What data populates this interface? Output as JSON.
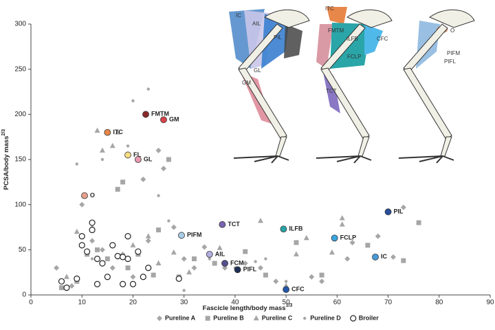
{
  "chart_data": {
    "type": "scatter",
    "x_label": {
      "text": "Fascicle length/body mass",
      "sup": "1/3"
    },
    "y_label": {
      "text": "PCSA/body mass",
      "sup": "2/3"
    },
    "xlim": [
      0,
      90
    ],
    "xticks": [
      0,
      10,
      20,
      30,
      40,
      50,
      60,
      70,
      80,
      90
    ],
    "ylim": [
      0,
      300
    ],
    "yticks": [
      0,
      50,
      100,
      150,
      200,
      250,
      300
    ],
    "series": [
      {
        "name": "Pureline A",
        "marker": "diamond",
        "color": "#a6a6a6",
        "x": [
          5,
          8,
          10,
          12,
          14,
          16,
          18,
          20,
          22,
          23,
          25,
          26,
          28,
          30,
          32,
          34,
          38,
          42,
          45,
          48,
          55,
          57,
          62,
          63,
          68,
          71,
          73
        ],
        "y": [
          30,
          10,
          100,
          60,
          50,
          30,
          45,
          20,
          128,
          60,
          160,
          140,
          75,
          40,
          30,
          53,
          30,
          35,
          30,
          15,
          20,
          15,
          40,
          58,
          65,
          42,
          97
        ]
      },
      {
        "name": "Pureline B",
        "marker": "square",
        "color": "#a6a6a6",
        "x": [
          6,
          9,
          11,
          13,
          15,
          17,
          18,
          19,
          21,
          24,
          25,
          27,
          29,
          32,
          36,
          42,
          46,
          52,
          57,
          66,
          73,
          76
        ],
        "y": [
          8,
          15,
          45,
          50,
          40,
          117,
          125,
          30,
          45,
          22,
          72,
          150,
          20,
          40,
          35,
          48,
          22,
          58,
          22,
          55,
          38,
          80
        ]
      },
      {
        "name": "Pureline C",
        "marker": "triangle",
        "color": "#a6a6a6",
        "x": [
          7,
          9,
          12,
          13,
          14,
          16,
          17,
          20,
          23,
          25,
          28,
          31,
          37,
          45,
          50,
          52,
          54,
          59,
          61,
          61
        ],
        "y": [
          20,
          70,
          75,
          182,
          160,
          165,
          180,
          55,
          65,
          35,
          47,
          25,
          52,
          82,
          10,
          45,
          63,
          47,
          85,
          78
        ]
      },
      {
        "name": "Pureline D",
        "marker": "dot",
        "color": "#a6a6a6",
        "x": [
          9,
          12,
          14,
          19,
          20,
          23,
          25,
          27,
          30,
          35,
          40,
          44,
          46,
          50
        ],
        "y": [
          145,
          40,
          150,
          165,
          215,
          228,
          110,
          82,
          5,
          40,
          30,
          37,
          40,
          15
        ]
      },
      {
        "name": "Broiler",
        "marker": "open-circle",
        "color": "#222222",
        "x": [
          6,
          7,
          9,
          10,
          10,
          11,
          12,
          12,
          13,
          13,
          14,
          15,
          16,
          17,
          18,
          18,
          19,
          19,
          20,
          21,
          22,
          23,
          29
        ],
        "y": [
          15,
          8,
          18,
          55,
          65,
          48,
          80,
          72,
          40,
          12,
          35,
          20,
          55,
          43,
          42,
          12,
          65,
          40,
          12,
          48,
          20,
          30,
          18
        ]
      }
    ],
    "highlighted": [
      {
        "label": "ITC",
        "x": 15,
        "y": 180,
        "color": "#e8874a"
      },
      {
        "label": "FMTM",
        "x": 22.5,
        "y": 200,
        "color": "#8b2a2a"
      },
      {
        "label": "GM",
        "x": 26,
        "y": 194,
        "color": "#d9434b"
      },
      {
        "label": "FL",
        "x": 19,
        "y": 155,
        "color": "#f5dc84"
      },
      {
        "label": "GL",
        "x": 21,
        "y": 150,
        "color": "#e89ab0"
      },
      {
        "label": "O",
        "x": 10.5,
        "y": 110,
        "color": "#e8a08e"
      },
      {
        "label": "PIFM",
        "x": 29.5,
        "y": 66,
        "color": "#a9cde8"
      },
      {
        "label": "TCT",
        "x": 37.5,
        "y": 78,
        "color": "#7a64b0"
      },
      {
        "label": "AIL",
        "x": 35,
        "y": 45,
        "color": "#b3aee0"
      },
      {
        "label": "FCM",
        "x": 38,
        "y": 35,
        "color": "#54508f"
      },
      {
        "label": "PIFL",
        "x": 40.5,
        "y": 28,
        "color": "#1f2f55"
      },
      {
        "label": "ILFB",
        "x": 49.5,
        "y": 73,
        "color": "#27a5a5"
      },
      {
        "label": "CFC",
        "x": 50,
        "y": 6,
        "color": "#2457a8"
      },
      {
        "label": "FCLP",
        "x": 59.5,
        "y": 63,
        "color": "#3aa6e0"
      },
      {
        "label": "IC",
        "x": 67.5,
        "y": 42,
        "color": "#4a9ad8"
      },
      {
        "label": "PIL",
        "x": 70,
        "y": 92,
        "color": "#274f9a"
      }
    ],
    "illustrations": [
      {
        "labels": [
          "IC",
          "AIL",
          "PIL",
          "GL",
          "GM"
        ]
      },
      {
        "labels": [
          "ITC",
          "FMTM",
          "ILFB",
          "CFC",
          "FCLP",
          "TCT"
        ]
      },
      {
        "labels": [
          "O",
          "PIFM",
          "PIFL"
        ]
      }
    ]
  }
}
